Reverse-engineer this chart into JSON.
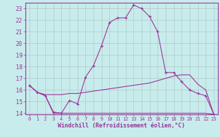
{
  "xlabel": "Windchill (Refroidissement éolien,°C)",
  "background_color": "#c8ecec",
  "grid_color": "#b0c8c8",
  "line_color": "#993399",
  "spine_color": "#993399",
  "hours": [
    0,
    1,
    2,
    3,
    4,
    5,
    6,
    7,
    8,
    9,
    10,
    11,
    12,
    13,
    14,
    15,
    16,
    17,
    18,
    19,
    20,
    21,
    22,
    23
  ],
  "line1": [
    16.4,
    15.8,
    15.5,
    14.1,
    14.0,
    15.1,
    14.8,
    17.1,
    18.1,
    19.8,
    21.8,
    22.2,
    22.2,
    23.3,
    23.0,
    22.3,
    21.0,
    17.5,
    17.5,
    16.7,
    16.0,
    15.7,
    15.5,
    13.9
  ],
  "line2": [
    16.4,
    15.8,
    15.6,
    15.6,
    15.6,
    15.7,
    15.7,
    15.8,
    15.9,
    16.0,
    16.1,
    16.2,
    16.3,
    16.4,
    16.5,
    16.6,
    16.8,
    17.0,
    17.2,
    17.3,
    17.3,
    16.5,
    16.0,
    13.9
  ],
  "line3": [
    16.4,
    15.8,
    15.5,
    14.0,
    14.0,
    14.0,
    14.0,
    14.0,
    14.0,
    14.0,
    14.0,
    14.0,
    14.0,
    14.0,
    14.0,
    14.0,
    14.0,
    14.0,
    14.0,
    14.0,
    14.0,
    14.0,
    14.0,
    13.9
  ],
  "ylim": [
    13.9,
    23.5
  ],
  "yticks": [
    14,
    15,
    16,
    17,
    18,
    19,
    20,
    21,
    22,
    23
  ],
  "xlim": [
    -0.5,
    23.5
  ]
}
